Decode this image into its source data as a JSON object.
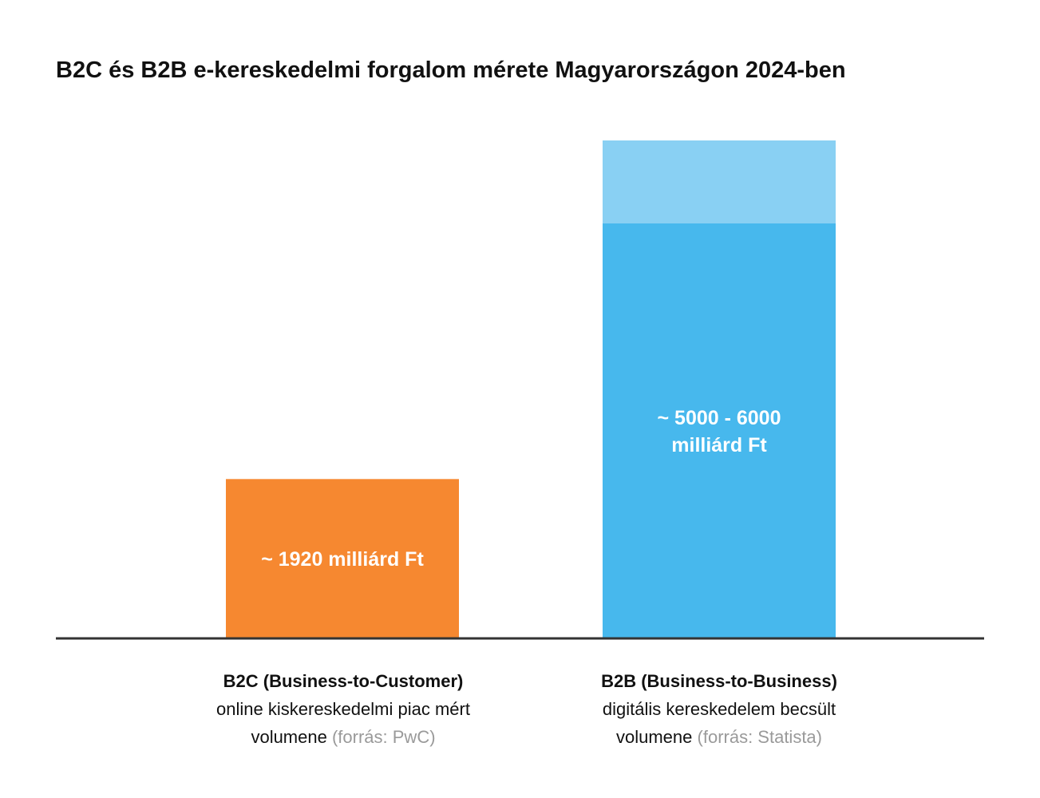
{
  "chart_data": {
    "type": "bar",
    "title": "B2C és B2B e-kereskedelmi forgalom mérete Magyarországon 2024-ben",
    "categories": [
      {
        "bold": "B2C (Business-to-Customer)",
        "line2": "online kiskereskedelmi piac mért",
        "line3": "volumene",
        "source": "(forrás: PwC)"
      },
      {
        "bold": "B2B (Business-to-Business)",
        "line2": "digitális kereskedelem becsült",
        "line3": "volumene",
        "source": "(forrás: Statista)"
      }
    ],
    "bars": [
      {
        "name": "B2C",
        "low": 1920,
        "high": 1920,
        "label_lines": [
          "~ 1920 milliárd Ft"
        ],
        "color": "#f68830"
      },
      {
        "name": "B2B",
        "low": 5000,
        "high": 6000,
        "label_lines": [
          "~ 5000 - 6000",
          "milliárd Ft"
        ],
        "color": "#47b8ed",
        "range_color": "#89d0f3"
      }
    ],
    "ylim": [
      0,
      6000
    ],
    "unit": "milliárd Ft",
    "axis_color": "#333333",
    "grid": false
  }
}
